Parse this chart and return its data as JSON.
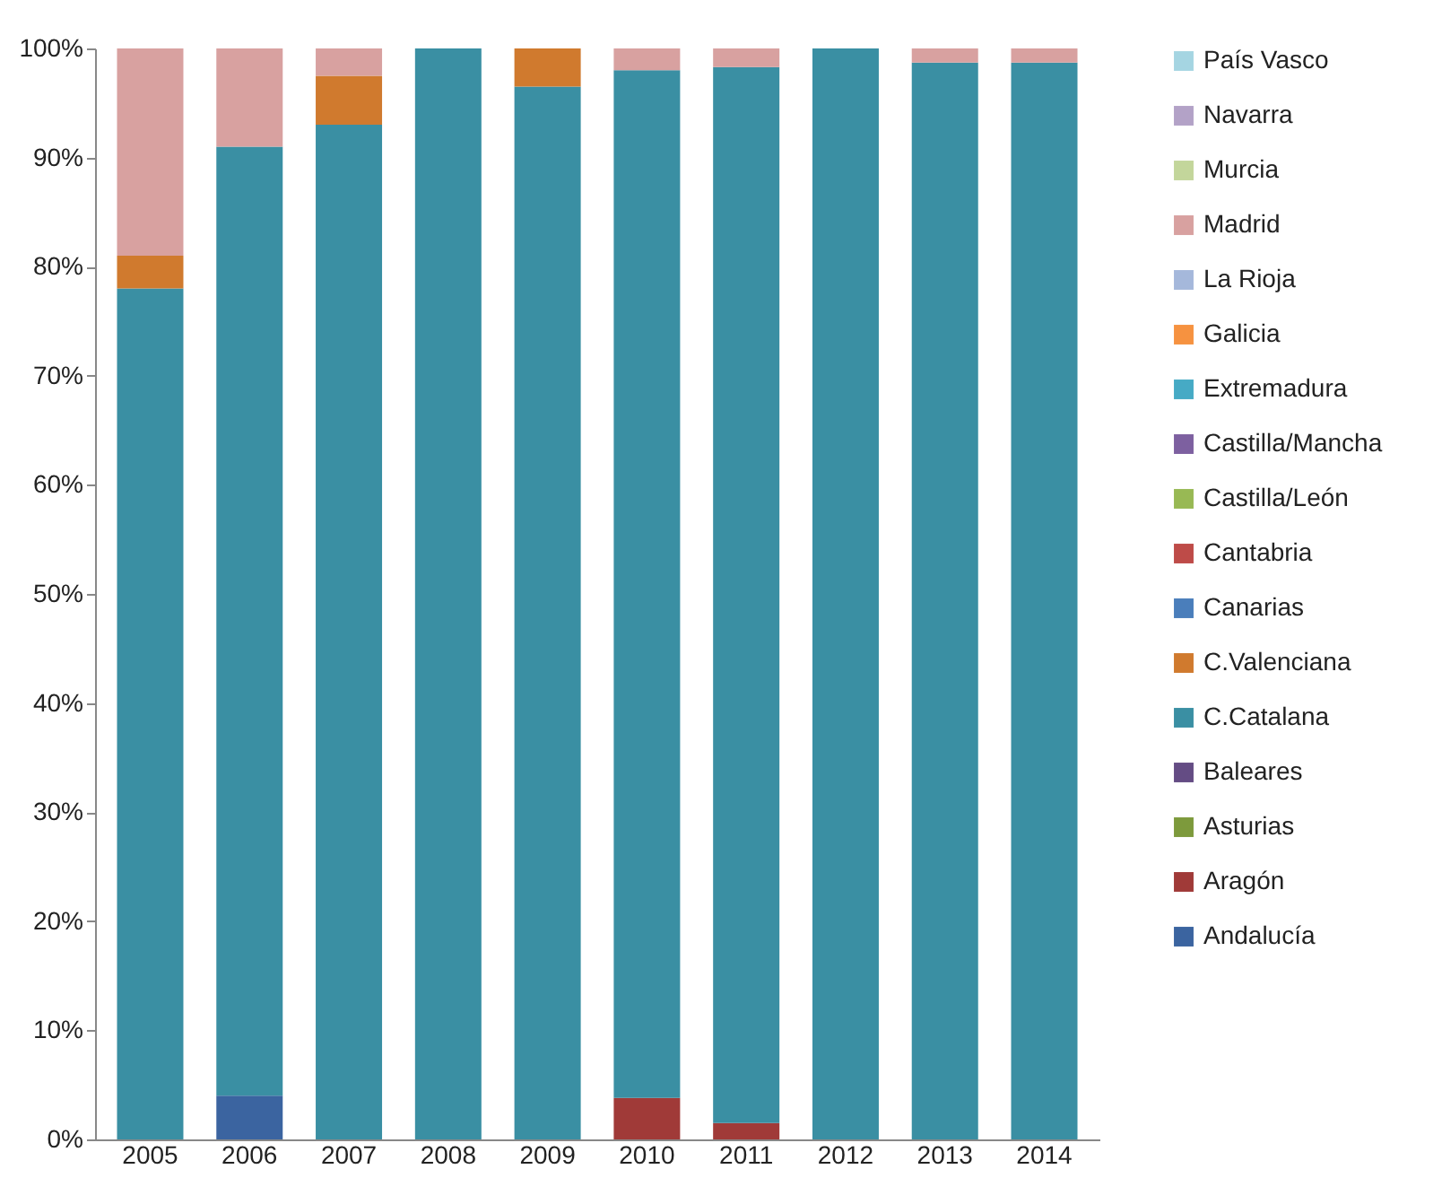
{
  "chart_data": {
    "type": "bar",
    "stacked": true,
    "categories": [
      "2005",
      "2006",
      "2007",
      "2008",
      "2009",
      "2010",
      "2011",
      "2012",
      "2013",
      "2014"
    ],
    "series": [
      {
        "name": "Andalucía",
        "color": "#3b64a0",
        "values": [
          0,
          4,
          0,
          0,
          0,
          0,
          0,
          0,
          0,
          0
        ]
      },
      {
        "name": "Aragón",
        "color": "#a03a38",
        "values": [
          0,
          0,
          0,
          0,
          0,
          3.8,
          1.5,
          0,
          0,
          0
        ]
      },
      {
        "name": "Asturias",
        "color": "#7d9a3c",
        "values": [
          0,
          0,
          0,
          0,
          0,
          0,
          0,
          0,
          0,
          0
        ]
      },
      {
        "name": "Baleares",
        "color": "#644c84",
        "values": [
          0,
          0,
          0,
          0,
          0,
          0,
          0,
          0,
          0,
          0
        ]
      },
      {
        "name": "C.Catalana",
        "color": "#3a8fa3",
        "values": [
          78,
          87,
          93,
          100,
          96.5,
          94.2,
          96.8,
          100,
          98.7,
          98.7
        ]
      },
      {
        "name": "C.Valenciana",
        "color": "#d07a2e",
        "values": [
          3,
          0,
          4.5,
          0,
          3.5,
          0,
          0,
          0,
          0,
          0
        ]
      },
      {
        "name": "Canarias",
        "color": "#4a7ebb",
        "values": [
          0,
          0,
          0,
          0,
          0,
          0,
          0,
          0,
          0,
          0
        ]
      },
      {
        "name": "Cantabria",
        "color": "#be4b48",
        "values": [
          0,
          0,
          0,
          0,
          0,
          0,
          0,
          0,
          0,
          0
        ]
      },
      {
        "name": "Castilla/León",
        "color": "#98b954",
        "values": [
          0,
          0,
          0,
          0,
          0,
          0,
          0,
          0,
          0,
          0
        ]
      },
      {
        "name": "Castilla/Mancha",
        "color": "#7d60a0",
        "values": [
          0,
          0,
          0,
          0,
          0,
          0,
          0,
          0,
          0,
          0
        ]
      },
      {
        "name": "Extremadura",
        "color": "#46aac5",
        "values": [
          0,
          0,
          0,
          0,
          0,
          0,
          0,
          0,
          0,
          0
        ]
      },
      {
        "name": "Galicia",
        "color": "#f69240",
        "values": [
          0,
          0,
          0,
          0,
          0,
          0,
          0,
          0,
          0,
          0
        ]
      },
      {
        "name": "La Rioja",
        "color": "#a5b8db",
        "values": [
          0,
          0,
          0,
          0,
          0,
          0,
          0,
          0,
          0,
          0
        ]
      },
      {
        "name": "Madrid",
        "color": "#d8a1a0",
        "values": [
          19,
          9,
          2.5,
          0,
          0,
          2,
          1.7,
          0,
          1.3,
          1.3
        ]
      },
      {
        "name": "Murcia",
        "color": "#c3d69b",
        "values": [
          0,
          0,
          0,
          0,
          0,
          0,
          0,
          0,
          0,
          0
        ]
      },
      {
        "name": "Navarra",
        "color": "#b3a2c7",
        "values": [
          0,
          0,
          0,
          0,
          0,
          0,
          0,
          0,
          0,
          0
        ]
      },
      {
        "name": "País Vasco",
        "color": "#a5d5e2",
        "values": [
          0,
          0,
          0,
          0,
          0,
          0,
          0,
          0,
          0,
          0
        ]
      }
    ],
    "ylim": [
      0,
      100
    ],
    "yticks": [
      {
        "value": 0,
        "label": "0%"
      },
      {
        "value": 10,
        "label": "10%"
      },
      {
        "value": 20,
        "label": "20%"
      },
      {
        "value": 30,
        "label": "30%"
      },
      {
        "value": 40,
        "label": "40%"
      },
      {
        "value": 50,
        "label": "50%"
      },
      {
        "value": 60,
        "label": "60%"
      },
      {
        "value": 70,
        "label": "70%"
      },
      {
        "value": 80,
        "label": "80%"
      },
      {
        "value": 90,
        "label": "90%"
      },
      {
        "value": 100,
        "label": "100%"
      }
    ],
    "grid": false,
    "legend": "right"
  }
}
